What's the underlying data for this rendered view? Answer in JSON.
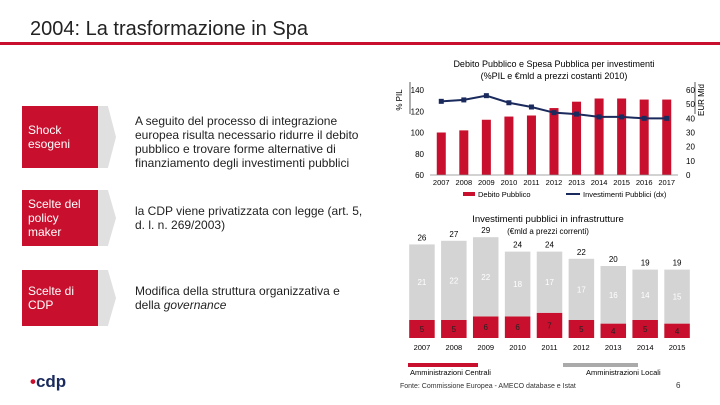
{
  "title": "2004: La trasformazione in Spa",
  "rows": [
    {
      "label": "Shock esogeni",
      "text": "A seguito del processo di integrazione europea risulta necessario ridurre il debito pubblico e trovare forme alternative di finanziamento degli investimenti pubblici"
    },
    {
      "label": "Scelte del policy maker",
      "text": "la CDP viene privatizzata con legge (art. 5, d. l. n. 269/2003)"
    },
    {
      "label": "Scelte di CDP",
      "text_prefix": "Modifica della struttura organizzativa e della ",
      "text_emph": "governance"
    }
  ],
  "source": "Fonte: Commissione Europea - AMECO database e Istat",
  "page_number": "6",
  "logo": {
    "text": "cdp",
    "accent": "#c8102e"
  },
  "colors": {
    "red": "#c8102e",
    "grey": "#d4d4d4",
    "navy": "#1a2a5c"
  },
  "chart_data": [
    {
      "type": "bar+line",
      "title": "Debito Pubblico e Spesa Pubblica per investimenti",
      "subtitle": "(%PIL e €mld a prezzi costanti 2010)",
      "ylabel_left": "% PIL",
      "ylabel_right": "EUR Mld",
      "categories": [
        "2007",
        "2008",
        "2009",
        "2010",
        "2011",
        "2012",
        "2013",
        "2014",
        "2015",
        "2016",
        "2017"
      ],
      "ylim_left": [
        60,
        140
      ],
      "ylim_right": [
        0,
        60
      ],
      "yticks_left": [
        "140",
        "120",
        "100",
        "80",
        "60"
      ],
      "yticks_right": [
        "60",
        "50",
        "40",
        "30",
        "20",
        "10",
        "0"
      ],
      "series": [
        {
          "name": "Debito Pubblico",
          "axis": "left",
          "kind": "bar",
          "color": "#c8102e",
          "values": [
            100,
            102,
            112,
            115,
            116,
            123,
            129,
            132,
            132,
            131,
            131
          ]
        },
        {
          "name": "Investimenti Pubblici (dx)",
          "axis": "right",
          "kind": "line",
          "color": "#1a2a5c",
          "values": [
            52,
            53,
            56,
            51,
            48,
            44,
            43,
            41,
            41,
            40,
            40
          ]
        }
      ]
    },
    {
      "type": "stacked-bar",
      "title": "Investimenti pubblici in infrastrutture",
      "subtitle": "(€mld a prezzi correnti)",
      "categories": [
        "2007",
        "2008",
        "2009",
        "2010",
        "2011",
        "2012",
        "2013",
        "2014",
        "2015"
      ],
      "totals": [
        "26",
        "27",
        "29",
        "24",
        "24",
        "22",
        "20",
        "19",
        "19"
      ],
      "series": [
        {
          "name": "Amministrazioni Centrali",
          "color": "#c8102e",
          "values": [
            5,
            5,
            6,
            6,
            7,
            5,
            4,
            5,
            4
          ]
        },
        {
          "name": "Amministrazioni Locali",
          "color": "#d4d4d4",
          "values": [
            21,
            22,
            22,
            18,
            17,
            17,
            16,
            14,
            15
          ]
        }
      ]
    }
  ]
}
